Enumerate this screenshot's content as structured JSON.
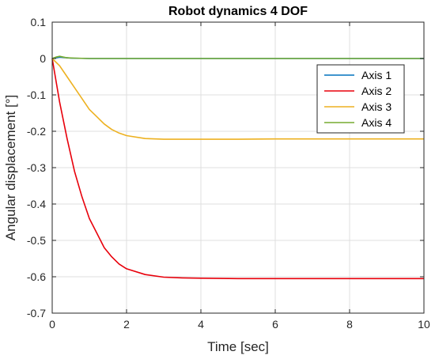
{
  "chart_data": {
    "type": "line",
    "title": "Robot dynamics 4 DOF",
    "xlabel": "Time [sec]",
    "ylabel": "Angular displacement [°]",
    "xlim": [
      0,
      10
    ],
    "ylim": [
      -0.7,
      0.1
    ],
    "xticks": [
      0,
      2,
      4,
      6,
      8,
      10
    ],
    "yticks": [
      0.1,
      0,
      -0.1,
      -0.2,
      -0.3,
      -0.4,
      -0.5,
      -0.6,
      -0.7
    ],
    "grid": true,
    "legend_position": "top-right",
    "series": [
      {
        "name": "Axis 1",
        "color": "#0072BD",
        "x": [
          0,
          0.1,
          0.2,
          0.3,
          0.5,
          1,
          10
        ],
        "y": [
          0,
          0.002,
          0.004,
          0.003,
          0.001,
          0,
          0
        ]
      },
      {
        "name": "Axis 2",
        "color": "#E8000B",
        "x": [
          0,
          0.2,
          0.4,
          0.6,
          0.8,
          1,
          1.2,
          1.4,
          1.6,
          1.8,
          2,
          2.5,
          3,
          3.5,
          4,
          5,
          6,
          7,
          8,
          9,
          10
        ],
        "y": [
          0,
          -0.12,
          -0.22,
          -0.31,
          -0.38,
          -0.44,
          -0.48,
          -0.52,
          -0.545,
          -0.565,
          -0.578,
          -0.594,
          -0.601,
          -0.603,
          -0.604,
          -0.605,
          -0.605,
          -0.605,
          -0.605,
          -0.605,
          -0.605
        ]
      },
      {
        "name": "Axis 3",
        "color": "#EDB120",
        "x": [
          0,
          0.2,
          0.4,
          0.6,
          0.8,
          1,
          1.2,
          1.4,
          1.6,
          1.8,
          2,
          2.5,
          3,
          4,
          5,
          6,
          7,
          8,
          9,
          10
        ],
        "y": [
          0,
          -0.02,
          -0.05,
          -0.08,
          -0.11,
          -0.14,
          -0.16,
          -0.18,
          -0.195,
          -0.205,
          -0.212,
          -0.22,
          -0.222,
          -0.222,
          -0.222,
          -0.221,
          -0.221,
          -0.221,
          -0.221,
          -0.221
        ]
      },
      {
        "name": "Axis 4",
        "color": "#77AC30",
        "x": [
          0,
          0.1,
          0.2,
          0.3,
          0.4,
          0.6,
          1,
          10
        ],
        "y": [
          0,
          0.004,
          0.006,
          0.004,
          0.002,
          0.001,
          0,
          0
        ]
      }
    ]
  }
}
